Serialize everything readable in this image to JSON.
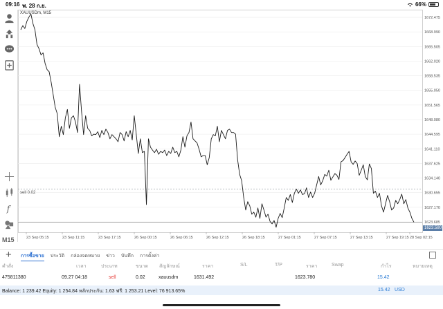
{
  "status_bar": {
    "time": "09:16",
    "date": "พ. 28 ก.ย.",
    "battery": "66%"
  },
  "toolbar": {
    "icons": [
      "account-icon",
      "trade-icon",
      "chat-icon",
      "new-order-icon"
    ],
    "tools": [
      "crosshair-icon",
      "indicators-icon",
      "function-icon",
      "objects-icon"
    ],
    "timeframe": "M15"
  },
  "chart": {
    "symbol_label": "XAUUSDm, M15",
    "order_line_label": "sell 0.02",
    "current_price": "1623.580",
    "colors": {
      "line": "#1a1a1a",
      "grid": "#ececec",
      "order_line": "#9aa0a6",
      "price_line": "#888888",
      "badge": "#5b7ea8"
    }
  },
  "chart_data": {
    "type": "line",
    "ylim": [
      1621.2,
      1674.3
    ],
    "y_ticks": [
      "1672.475",
      "1668.990",
      "1665.505",
      "1662.020",
      "1658.535",
      "1655.050",
      "1651.565",
      "1648.080",
      "1644.595",
      "1641.110",
      "1637.625",
      "1634.140",
      "1630.655",
      "1627.170",
      "1623.685"
    ],
    "x_ticks": [
      "23 Sep 05:15",
      "23 Sep 11:15",
      "23 Sep 17:15",
      "26 Sep 00:15",
      "26 Sep 06:15",
      "26 Sep 12:15",
      "26 Sep 18:15",
      "27 Sep 01:15",
      "27 Sep 07:15",
      "27 Sep 13:15",
      "27 Sep 19:15",
      "28 Sep 02:15"
    ],
    "order_level": 1631.492,
    "last_price": 1623.58,
    "grid": true,
    "series": [
      {
        "values": [
          1669.5,
          1670.5,
          1669.8,
          1671.5,
          1672.5,
          1673.3,
          1671,
          1669.5,
          1666,
          1665,
          1663.5,
          1664,
          1661.5,
          1660,
          1659.5,
          1657,
          1654,
          1651,
          1649.5,
          1644,
          1646.5,
          1644.5,
          1648.5,
          1650.5,
          1646,
          1648.5,
          1649,
          1647.5,
          1645,
          1656.5,
          1650,
          1644.5,
          1649,
          1646,
          1645.5,
          1644.2,
          1644.6,
          1644.5,
          1645.2,
          1643.8,
          1645.5,
          1644.5,
          1645.8,
          1645,
          1643.5,
          1644.5,
          1644,
          1643.5,
          1642.8,
          1645,
          1644.5,
          1643,
          1645.2,
          1644,
          1645.5,
          1643.2,
          1649,
          1644.5,
          1640,
          1643.5,
          1640.2,
          1640.5,
          1627.8,
          1643.5,
          1641.5,
          1640.8,
          1640.2,
          1641,
          1639.8,
          1640.5,
          1640.2,
          1640.8,
          1639.5,
          1640.5,
          1640,
          1641.5,
          1640.2,
          1640.5,
          1639.2,
          1640.8,
          1644,
          1641.5,
          1644.2,
          1645,
          1647.5,
          1643.5,
          1643,
          1642.5,
          1641,
          1639.2,
          1639.5,
          1639.5,
          1637.3,
          1639,
          1643.5,
          1644.5,
          1644.2,
          1646.5,
          1642.8,
          1645.5,
          1644.5,
          1643.5,
          1645.5,
          1645.8,
          1645,
          1645,
          1644.6,
          1638.5,
          1635,
          1633.5,
          1629.5,
          1626.5,
          1628.5,
          1627.5,
          1625.5,
          1626,
          1624.8,
          1627,
          1624.5,
          1628,
          1626.5,
          1624.8,
          1625.5,
          1623.8,
          1623.2,
          1624,
          1622.4,
          1624.5,
          1625.7,
          1624.7,
          1627,
          1629.5,
          1628.8,
          1630.2,
          1628.3,
          1630.5,
          1631.5,
          1630.5,
          1631.3,
          1630.2,
          1630.4,
          1631.8,
          1629.5,
          1630.8,
          1629.5,
          1630.5,
          1632.5,
          1634.5,
          1632.5,
          1633.5,
          1635,
          1634.6,
          1636,
          1633.6,
          1634.4,
          1635.2,
          1634.8,
          1633.8,
          1638,
          1638.3,
          1639,
          1639.8,
          1640.5,
          1638,
          1637.4,
          1638.2,
          1637.6,
          1634.8,
          1636,
          1637.3,
          1634.5,
          1633.7,
          1637.5,
          1636.4,
          1630.5,
          1631,
          1629.5,
          1630.5,
          1627.5,
          1626,
          1628,
          1630,
          1628.5,
          1626.5,
          1627,
          1628.8,
          1628,
          1629,
          1630.3,
          1628,
          1629,
          1627,
          1626,
          1624.5,
          1623.6
        ]
      }
    ]
  },
  "tabs": {
    "items": [
      "การซื้อขาย",
      "ประวัติ",
      "กล่องจดหมาย",
      "ข่าว",
      "บันทึก",
      "การตั้งค่า"
    ]
  },
  "table": {
    "headers": [
      "คำสั่ง",
      "เวลา",
      "ประเภท",
      "ขนาด",
      "สัญลักษณ์",
      "ราคา",
      "S/L",
      "T/P",
      "ราคา",
      "Swap",
      "กำไร",
      "หมายเหตุ"
    ],
    "row": {
      "order": "475811380",
      "time": "09.27 04:18",
      "type": "sell",
      "volume": "0.02",
      "symbol": "xauusdm",
      "open_price": "1631.492",
      "current_price": "1623.780",
      "profit": "15.42"
    }
  },
  "balance": {
    "text": "Balance: 1 239.42 Equity: 1 254.84 หลักประกัน: 1.63 ฟรี: 1 253.21 Level: 76 913.65%",
    "profit": "15.42",
    "currency": "USD"
  }
}
